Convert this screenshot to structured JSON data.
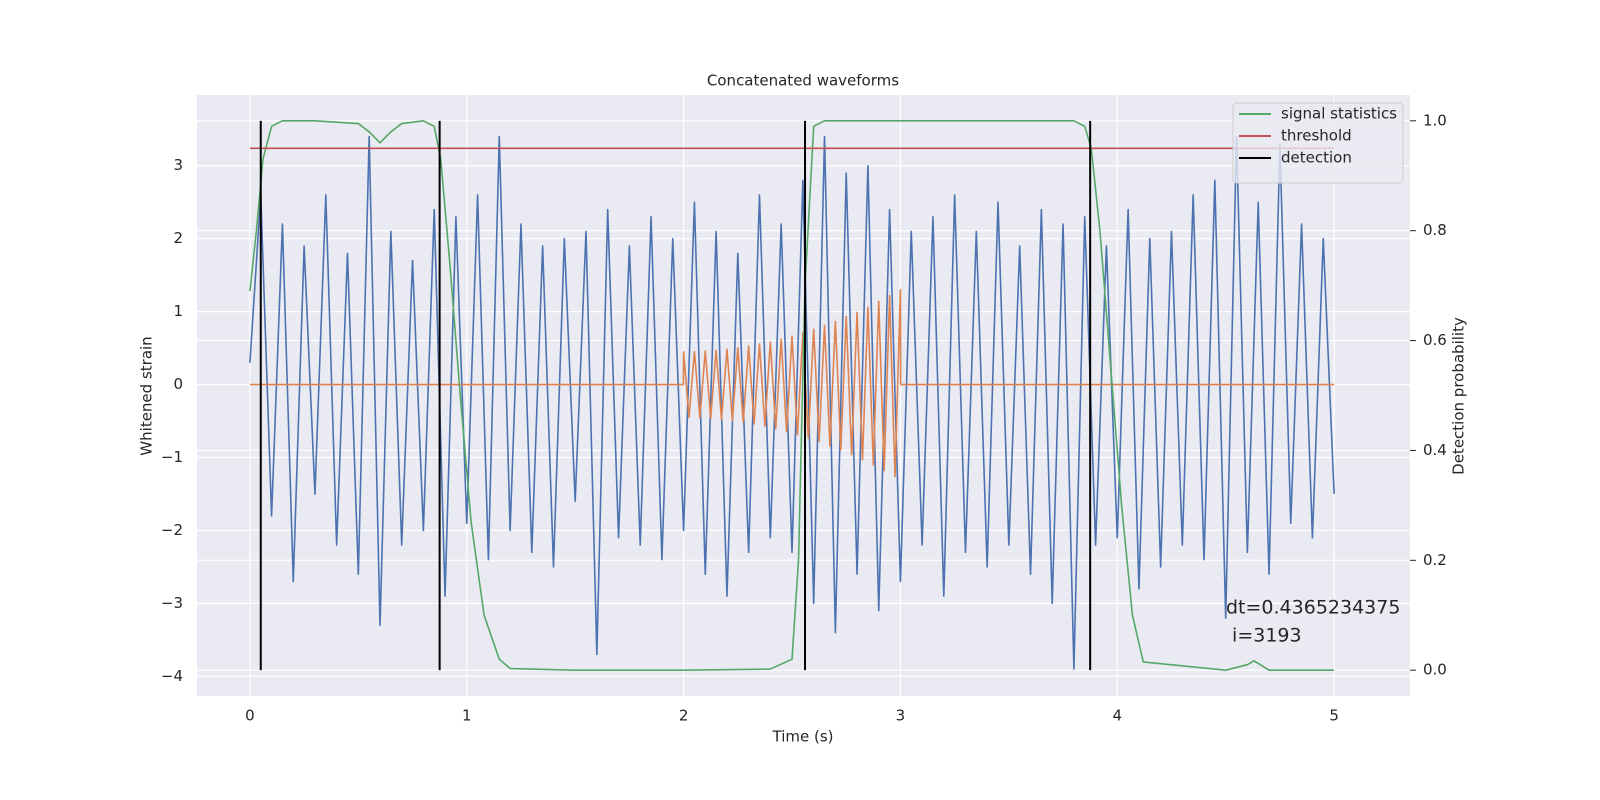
{
  "chart_data": {
    "type": "line",
    "title": "Concatenated waveforms",
    "xlabel": "Time (s)",
    "ylabel": "Whitened strain",
    "y2label": "Detection probability",
    "xlim": [
      -0.244,
      5.35
    ],
    "ylim": [
      -4.27,
      3.97
    ],
    "y2lim": [
      -0.047,
      1.047
    ],
    "xticks": [
      0,
      1,
      2,
      3,
      4,
      5
    ],
    "yticks": [
      {
        "value": -4,
        "label": "−4"
      },
      {
        "value": -3,
        "label": "−3"
      },
      {
        "value": -2,
        "label": "−2"
      },
      {
        "value": -1,
        "label": "−1"
      },
      0,
      1,
      2,
      3
    ],
    "y2ticks": [
      {
        "value": 0,
        "label": "0.0"
      },
      0.2,
      0.4,
      0.6,
      0.8,
      {
        "value": 1,
        "label": "1.0"
      }
    ],
    "grid": true,
    "legend": "upper right",
    "series": [
      {
        "color": "#4c72b0",
        "x": [
          0,
          0.05,
          0.1,
          0.15,
          0.2,
          0.25,
          0.3,
          0.35,
          0.4,
          0.45,
          0.5,
          0.55,
          0.6,
          0.65,
          0.7,
          0.75,
          0.8,
          0.85,
          0.9,
          0.95,
          1,
          1.05,
          1.1,
          1.15,
          1.2,
          1.25,
          1.3,
          1.35,
          1.4,
          1.45,
          1.5,
          1.55,
          1.6,
          1.65,
          1.7,
          1.75,
          1.8,
          1.85,
          1.9,
          1.95,
          2,
          2.05,
          2.1,
          2.15,
          2.2,
          2.25,
          2.3,
          2.35,
          2.4,
          2.45,
          2.5,
          2.55,
          2.6,
          2.65,
          2.7,
          2.75,
          2.8,
          2.85,
          2.9,
          2.95,
          3,
          3.05,
          3.1,
          3.15,
          3.2,
          3.25,
          3.3,
          3.35,
          3.4,
          3.45,
          3.5,
          3.55,
          3.6,
          3.65,
          3.7,
          3.75,
          3.8,
          3.85,
          3.9,
          3.95,
          4,
          4.05,
          4.1,
          4.15,
          4.2,
          4.25,
          4.3,
          4.35,
          4.4,
          4.45,
          4.5,
          4.55,
          4.6,
          4.65,
          4.7,
          4.75,
          4.8,
          4.85,
          4.9,
          4.95,
          5
        ],
        "values": [
          0.3,
          2.6,
          -1.8,
          2.2,
          -2.7,
          1.9,
          -1.5,
          2.6,
          -2.2,
          1.8,
          -2.6,
          3.4,
          -3.3,
          2.1,
          -2.2,
          1.7,
          -2.0,
          2.4,
          -2.9,
          2.3,
          -1.9,
          2.6,
          -2.4,
          3.4,
          -2.0,
          2.2,
          -2.3,
          1.9,
          -2.5,
          2.0,
          -1.6,
          2.1,
          -3.7,
          2.4,
          -2.1,
          1.9,
          -2.2,
          2.3,
          -2.4,
          2.0,
          -2.0,
          2.5,
          -2.6,
          2.1,
          -2.9,
          1.8,
          -2.3,
          2.6,
          -2.1,
          2.2,
          -2.3,
          2.8,
          -3.0,
          3.4,
          -3.4,
          2.9,
          -2.6,
          3.0,
          -3.1,
          2.4,
          -2.7,
          2.1,
          -2.2,
          2.3,
          -2.9,
          2.6,
          -2.3,
          2.1,
          -2.5,
          2.5,
          -2.2,
          1.9,
          -2.6,
          2.4,
          -3.0,
          2.2,
          -3.9,
          2.3,
          -2.2,
          1.9,
          -2.1,
          2.4,
          -2.8,
          2.0,
          -2.5,
          2.1,
          -2.2,
          2.6,
          -2.4,
          2.8,
          -3.2,
          3.4,
          -2.3,
          2.5,
          -2.6,
          3.3,
          -1.9,
          2.2,
          -2.1,
          2.0,
          -1.5
        ]
      },
      {
        "color": "#dd8452",
        "x": [
          0,
          1.999,
          2,
          2.025,
          2.05,
          2.075,
          2.1,
          2.125,
          2.15,
          2.175,
          2.2,
          2.225,
          2.25,
          2.275,
          2.3,
          2.325,
          2.35,
          2.375,
          2.4,
          2.425,
          2.45,
          2.475,
          2.5,
          2.525,
          2.55,
          2.575,
          2.6,
          2.625,
          2.65,
          2.675,
          2.7,
          2.725,
          2.75,
          2.775,
          2.8,
          2.825,
          2.85,
          2.875,
          2.9,
          2.925,
          2.95,
          2.975,
          3,
          3.001,
          5
        ],
        "values": [
          0,
          0,
          0.45,
          -0.45,
          0.452,
          -0.455,
          0.459,
          -0.463,
          0.469,
          -0.476,
          0.484,
          -0.493,
          0.503,
          -0.514,
          0.527,
          -0.54,
          0.555,
          -0.57,
          0.587,
          -0.605,
          0.624,
          -0.644,
          0.663,
          -0.687,
          0.71,
          -0.734,
          0.76,
          -0.78,
          0.81,
          -0.84,
          0.866,
          -0.895,
          0.93,
          -0.96,
          0.99,
          -1.03,
          1.06,
          -1.1,
          1.14,
          -1.18,
          1.22,
          -1.26,
          1.3,
          0,
          0
        ]
      },
      {
        "name": "signal statistics",
        "color": "#55a868",
        "axis": "y2",
        "x": [
          0,
          0.03,
          0.06,
          0.1,
          0.15,
          0.3,
          0.5,
          0.55,
          0.6,
          0.65,
          0.7,
          0.8,
          0.85,
          0.88,
          0.92,
          0.97,
          1.02,
          1.08,
          1.15,
          1.2,
          1.5,
          2.0,
          2.4,
          2.5,
          2.53,
          2.56,
          2.6,
          2.65,
          3.0,
          3.5,
          3.8,
          3.85,
          3.88,
          3.92,
          3.97,
          4.02,
          4.07,
          4.12,
          4.5,
          4.6,
          4.63,
          4.66,
          4.7,
          5.0
        ],
        "values": [
          0.69,
          0.8,
          0.93,
          0.99,
          1.0,
          1.0,
          0.995,
          0.98,
          0.96,
          0.98,
          0.995,
          1.0,
          0.99,
          0.93,
          0.75,
          0.5,
          0.27,
          0.1,
          0.02,
          0.003,
          0.0,
          0.0,
          0.002,
          0.02,
          0.2,
          0.7,
          0.99,
          1.0,
          1.0,
          1.0,
          1.0,
          0.99,
          0.95,
          0.8,
          0.55,
          0.3,
          0.1,
          0.015,
          0.0,
          0.01,
          0.017,
          0.01,
          0.0,
          0.0
        ]
      }
    ],
    "threshold": {
      "name": "threshold",
      "color": "#c44e52",
      "value": 0.95,
      "xmin": 0,
      "xmax": 5
    },
    "detection": {
      "name": "detection",
      "color": "#000000",
      "x": [
        0.05,
        0.875,
        2.56,
        3.875
      ],
      "ymin": 0,
      "ymax": 1
    },
    "annotations": [
      "dt=0.4365234375",
      " i=3193"
    ]
  }
}
